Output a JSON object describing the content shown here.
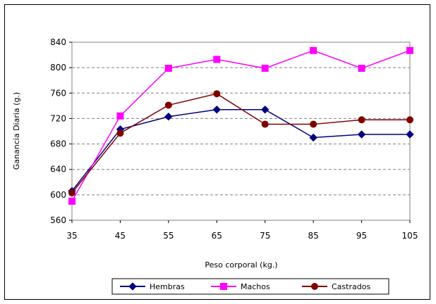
{
  "chart_data": {
    "type": "line",
    "title": "",
    "xlabel": "Peso corporal (kg.)",
    "ylabel": "Ganancia Diaria (g.)",
    "categories": [
      "35",
      "45",
      "55",
      "65",
      "75",
      "85",
      "95",
      "105"
    ],
    "ylim": [
      560,
      840
    ],
    "yticks": [
      "560",
      "600",
      "640",
      "680",
      "720",
      "760",
      "800",
      "840"
    ],
    "grid": "horizontal dashed",
    "legend_position": "bottom",
    "series": [
      {
        "name": "Hembras",
        "color": "#000080",
        "marker": "diamond",
        "values": [
          606,
          703,
          723,
          734,
          734,
          690,
          695,
          695
        ]
      },
      {
        "name": "Machos",
        "color": "#FF00FF",
        "marker": "square",
        "values": [
          590,
          724,
          799,
          813,
          799,
          827,
          799,
          827
        ]
      },
      {
        "name": "Castrados",
        "color": "#800000",
        "marker": "circle",
        "values": [
          603,
          697,
          741,
          759,
          711,
          711,
          718,
          718
        ]
      }
    ]
  }
}
